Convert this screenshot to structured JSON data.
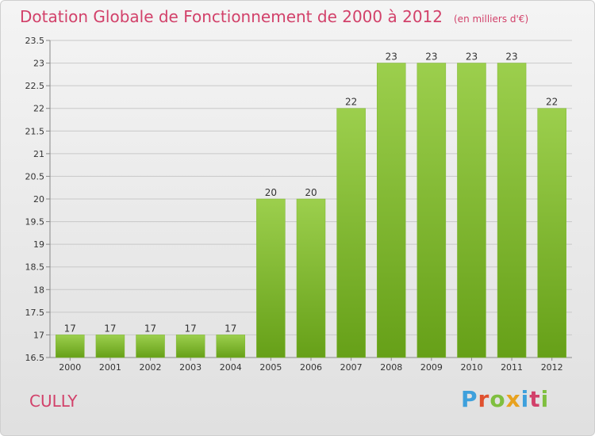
{
  "title": "Dotation Globale de Fonctionnement de 2000 à 2012",
  "subtitle": "(en milliers d'€)",
  "commune": "CULLY",
  "logo": "Proxiti",
  "colors": {
    "title": "#d2416a",
    "bar_light": "#9ccf4d",
    "bar_dark": "#66a018",
    "grid": "#c8c8c8"
  },
  "chart_data": {
    "type": "bar",
    "categories": [
      "2000",
      "2001",
      "2002",
      "2003",
      "2004",
      "2005",
      "2006",
      "2007",
      "2008",
      "2009",
      "2010",
      "2011",
      "2012"
    ],
    "values": [
      17,
      17,
      17,
      17,
      17,
      20,
      20,
      22,
      23,
      23,
      23,
      23,
      22
    ],
    "value_labels": [
      "17",
      "17",
      "17",
      "17",
      "17",
      "20",
      "20",
      "22",
      "23",
      "23",
      "23",
      "23",
      "22"
    ],
    "ylim": [
      16.5,
      23.5
    ],
    "yticks": [
      16.5,
      17,
      17.5,
      18,
      18.5,
      19,
      19.5,
      20,
      20.5,
      21,
      21.5,
      22,
      22.5,
      23,
      23.5
    ],
    "ytick_labels": [
      "16.5",
      "17",
      "17.5",
      "18",
      "18.5",
      "19",
      "19.5",
      "20",
      "20.5",
      "21",
      "21.5",
      "22",
      "22.5",
      "23",
      "23.5"
    ],
    "grid": true
  }
}
